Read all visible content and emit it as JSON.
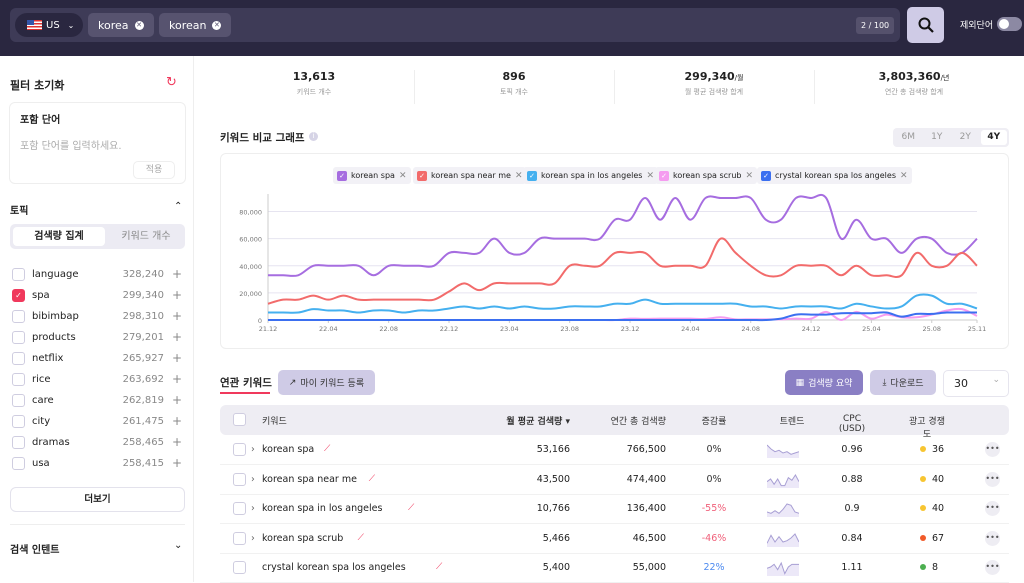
{
  "topbar": {
    "country": "US",
    "chips": [
      "korea",
      "korean"
    ],
    "counter": "2 / 100",
    "exclude_label": "제외단어",
    "exclude_on": false
  },
  "sidebar": {
    "reset_label": "필터 초기화",
    "include": {
      "title": "포함 단어",
      "placeholder": "포함 단어를 입력하세요.",
      "apply": "적용"
    },
    "topic": {
      "title": "토픽",
      "tabs": [
        "검색량 집계",
        "키워드 개수"
      ],
      "active_tab": "검색량 집계",
      "items": [
        {
          "name": "language",
          "value": "328,240",
          "checked": false
        },
        {
          "name": "spa",
          "value": "299,340",
          "checked": true
        },
        {
          "name": "bibimbap",
          "value": "298,310",
          "checked": false
        },
        {
          "name": "products",
          "value": "279,201",
          "checked": false
        },
        {
          "name": "netflix",
          "value": "265,927",
          "checked": false
        },
        {
          "name": "rice",
          "value": "263,692",
          "checked": false
        },
        {
          "name": "care",
          "value": "262,819",
          "checked": false
        },
        {
          "name": "city",
          "value": "261,475",
          "checked": false
        },
        {
          "name": "dramas",
          "value": "258,465",
          "checked": false
        },
        {
          "name": "usa",
          "value": "258,415",
          "checked": false
        }
      ]
    },
    "more": "더보기",
    "intent": "검색 인텐트"
  },
  "stats": [
    {
      "value": "13,613",
      "unit": "",
      "label": "키워드 개수"
    },
    {
      "value": "896",
      "unit": "",
      "label": "토픽 개수"
    },
    {
      "value": "299,340",
      "unit": "/월",
      "label": "월 평균 검색량 합계"
    },
    {
      "value": "3,803,360",
      "unit": "/년",
      "label": "연간 총 검색량 합계"
    }
  ],
  "chart_title": "키워드 비교 그래프",
  "ranges": [
    "6M",
    "1Y",
    "2Y",
    "4Y"
  ],
  "active_range": "4Y",
  "chart_data": {
    "type": "line",
    "x_ticks": [
      "21.12",
      "22.04",
      "22.08",
      "22.12",
      "23.04",
      "23.08",
      "23.12",
      "24.04",
      "24.08",
      "24.12",
      "25.04",
      "25.08",
      "25.11"
    ],
    "x_start": "2021-12",
    "x_end": "2025-11",
    "x_step": "month",
    "y_ticks": [
      "0",
      "20,000",
      "40,000",
      "60,000",
      "80,000"
    ],
    "ylim": [
      0,
      90000
    ],
    "grid": true,
    "legend_placement": "top",
    "series": [
      {
        "name": "korean spa",
        "color": "#a66de0",
        "values": [
          33000,
          33000,
          33000,
          40000,
          40000,
          40000,
          40000,
          33000,
          40000,
          40000,
          40000,
          40000,
          49500,
          49500,
          49500,
          60000,
          49500,
          49500,
          60000,
          60000,
          60000,
          60000,
          60000,
          74000,
          74000,
          90000,
          74000,
          90000,
          74000,
          90000,
          90000,
          90000,
          90000,
          74000,
          74000,
          90000,
          90000,
          90000,
          60000,
          74000,
          60000,
          60000,
          49500,
          60000,
          60000,
          49500,
          49500,
          60000
        ]
      },
      {
        "name": "korean spa near me",
        "color": "#f26b6b",
        "values": [
          12000,
          15000,
          15000,
          18000,
          15000,
          18000,
          15000,
          15000,
          15000,
          15000,
          15000,
          15000,
          21000,
          27000,
          22000,
          27000,
          27000,
          27000,
          27000,
          27000,
          40000,
          40000,
          40000,
          49500,
          49500,
          49500,
          40000,
          40000,
          40000,
          40000,
          60000,
          49500,
          40000,
          33000,
          33000,
          40000,
          40000,
          40000,
          33000,
          40000,
          33000,
          33000,
          33000,
          49500,
          40000,
          40000,
          49500,
          40000
        ]
      },
      {
        "name": "korean spa in los angeles",
        "color": "#45b0ef",
        "values": [
          5500,
          5500,
          5500,
          8000,
          7000,
          7000,
          5500,
          7000,
          7000,
          5500,
          7000,
          7000,
          8500,
          10000,
          8500,
          10000,
          8500,
          10000,
          8500,
          8500,
          10000,
          10000,
          10000,
          12000,
          12000,
          15000,
          12000,
          12000,
          12000,
          12000,
          12000,
          12000,
          10000,
          10000,
          8500,
          10000,
          10000,
          10000,
          8500,
          12000,
          10000,
          8500,
          10000,
          18000,
          18000,
          12000,
          12000,
          8500
        ]
      },
      {
        "name": "korean spa scrub",
        "color": "#f59cf0",
        "values": [
          0,
          0,
          0,
          0,
          0,
          0,
          0,
          0,
          0,
          0,
          0,
          0,
          0,
          0,
          0,
          0,
          0,
          0,
          0,
          0,
          0,
          0,
          0,
          0,
          1000,
          800,
          1000,
          1000,
          1000,
          800,
          2000,
          500,
          500,
          500,
          500,
          1000,
          1000,
          6000,
          0,
          6000,
          1000,
          4000,
          2000,
          2000,
          4000,
          7000,
          8000,
          3000
        ]
      },
      {
        "name": "crystal korean spa los angeles",
        "color": "#3b6ff0",
        "values": [
          0,
          0,
          0,
          0,
          0,
          0,
          0,
          0,
          0,
          0,
          0,
          0,
          0,
          0,
          0,
          0,
          0,
          0,
          0,
          0,
          0,
          0,
          0,
          0,
          0,
          0,
          0,
          0,
          0,
          0,
          0,
          0,
          0,
          0,
          1000,
          4000,
          4000,
          4000,
          5000,
          5000,
          5000,
          5500,
          2500,
          4500,
          4500,
          5500,
          5500,
          5500
        ]
      }
    ]
  },
  "related": {
    "tab": "연관 키워드",
    "my_keyword": "마이 키워드 등록",
    "summary": "검색량 요약",
    "download": "다운로드",
    "page_size": "30",
    "columns": [
      "키워드",
      "월 평균 검색량 ▾",
      "연간 총 검색량",
      "증감률",
      "트렌드",
      "CPC (USD)",
      "광고 경쟁도"
    ],
    "rows": [
      {
        "keyword": "korean spa",
        "expand": true,
        "monthly": "53,166",
        "yearly": "766,500",
        "change": "0%",
        "change_color": "#333",
        "trend": [
          9,
          6,
          4,
          5,
          3,
          4,
          2,
          3,
          4
        ],
        "cpc": "0.96",
        "comp": "36",
        "comp_color": "#f7c531"
      },
      {
        "keyword": "korean spa near me",
        "expand": true,
        "monthly": "43,500",
        "yearly": "474,400",
        "change": "0%",
        "change_color": "#333",
        "trend": [
          4,
          6,
          2,
          6,
          1,
          1,
          7,
          5,
          9,
          4
        ],
        "cpc": "0.88",
        "comp": "40",
        "comp_color": "#f7c531"
      },
      {
        "keyword": "korean spa in los angeles",
        "expand": true,
        "monthly": "10,766",
        "yearly": "136,400",
        "change": "-55%",
        "change_color": "#f0607a",
        "trend": [
          3,
          2,
          4,
          2,
          5,
          9,
          8,
          3,
          2
        ],
        "cpc": "0.9",
        "comp": "40",
        "comp_color": "#f7c531"
      },
      {
        "keyword": "korean spa scrub",
        "expand": true,
        "monthly": "5,466",
        "yearly": "46,500",
        "change": "-46%",
        "change_color": "#f0607a",
        "trend": [
          2,
          8,
          3,
          7,
          3,
          4,
          6,
          9,
          3
        ],
        "cpc": "0.84",
        "comp": "67",
        "comp_color": "#f15a29"
      },
      {
        "keyword": "crystal korean spa los angeles",
        "expand": false,
        "monthly": "5,400",
        "yearly": "55,000",
        "change": "22%",
        "change_color": "#4d8bf0",
        "trend": [
          5,
          6,
          8,
          4,
          9,
          1,
          6,
          8,
          8,
          8
        ],
        "cpc": "1.11",
        "comp": "8",
        "comp_color": "#4caf50"
      }
    ]
  },
  "colors": {
    "topbar": "#2a2740",
    "accent": "#f0395c",
    "primary": "#8a7fc4"
  }
}
